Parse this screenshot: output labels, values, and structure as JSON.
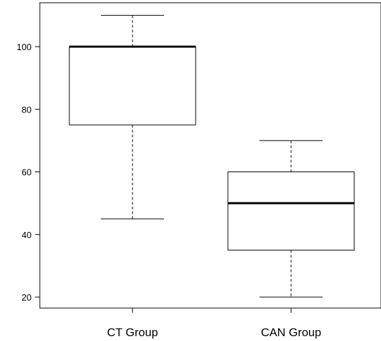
{
  "chart_data": {
    "type": "boxplot",
    "title": "",
    "xlabel": "",
    "ylabel": "",
    "categories": [
      "CT Group",
      "CAN Group"
    ],
    "boxes": [
      {
        "category": "CT Group",
        "whisker_low": 45,
        "q1": 75,
        "median": 100,
        "q3": 100,
        "whisker_high": 110
      },
      {
        "category": "CAN Group",
        "whisker_low": 20,
        "q1": 35,
        "median": 50,
        "q3": 60,
        "whisker_high": 70
      }
    ],
    "y_ticks": [
      "20",
      "40",
      "60",
      "80",
      "100"
    ],
    "ylim": [
      17,
      115
    ],
    "grid": false
  }
}
